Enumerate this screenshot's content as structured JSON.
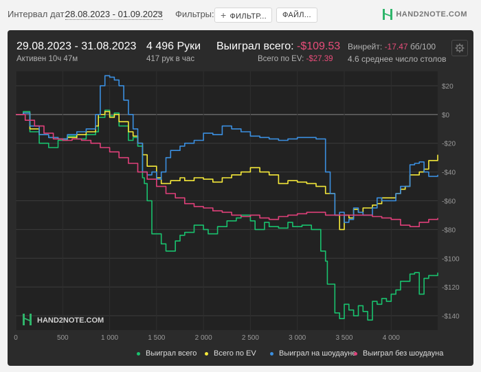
{
  "topbar": {
    "interval_label": "Интервал дат:",
    "interval_value": "28.08.2023 - 01.09.2023",
    "filters_label": "Фильтры:",
    "filter_button": "ФИЛЬТР...",
    "file_button": "ФАЙЛ...",
    "logo_text": "HAND2NOTE.COM"
  },
  "header": {
    "date_range": "29.08.2023 - 31.08.2023",
    "active": "Активен 10ч 47м",
    "hands": "4 496 Руки",
    "hands_per_hour": "417 рук в час",
    "won_label": "Выиграл всего:",
    "won_value": "-$109.53",
    "ev_label": "Всего по EV:",
    "ev_value": "-$27.39",
    "winrate_label": "Винрейт:",
    "winrate_value": "-17.47",
    "winrate_unit": "бб/100",
    "tables": "4.6 среднее число столов"
  },
  "chart_data": {
    "type": "line",
    "xlim": [
      0,
      4496
    ],
    "ylim": [
      -150,
      30
    ],
    "x_ticks": [
      0,
      500,
      1000,
      1500,
      2000,
      2500,
      3000,
      3500,
      4000
    ],
    "x_tick_labels": [
      "0",
      "500",
      "1 000",
      "1 500",
      "2 000",
      "2 500",
      "3 000",
      "3 500",
      "4 000"
    ],
    "y_ticks": [
      20,
      0,
      -20,
      -40,
      -60,
      -80,
      -100,
      -120,
      -140
    ],
    "y_tick_labels": [
      "$20",
      "$0",
      "-$20",
      "-$40",
      "-$60",
      "-$80",
      "-$100",
      "-$120",
      "-$140"
    ],
    "grid": true,
    "legend_position": "bottom-right",
    "watermark": "HAND2NOTE.COM",
    "series": [
      {
        "name": "Выиграл всего",
        "color": "#19c26e",
        "x": [
          0,
          80,
          150,
          250,
          350,
          450,
          550,
          650,
          750,
          850,
          880,
          950,
          1000,
          1050,
          1100,
          1200,
          1250,
          1300,
          1350,
          1370,
          1400,
          1450,
          1550,
          1600,
          1700,
          1750,
          1800,
          1900,
          2000,
          2050,
          2150,
          2250,
          2350,
          2400,
          2500,
          2550,
          2650,
          2700,
          2800,
          2900,
          2950,
          3050,
          3150,
          3250,
          3300,
          3320,
          3400,
          3450,
          3500,
          3550,
          3600,
          3650,
          3700,
          3750,
          3800,
          3850,
          3900,
          3950,
          4000,
          4050,
          4100,
          4200,
          4250,
          4300,
          4350,
          4400,
          4496
        ],
        "y": [
          0,
          2,
          -12,
          -20,
          -23,
          -18,
          -15,
          -17,
          -14,
          -12,
          -2,
          3,
          -1,
          1,
          -8,
          -18,
          -16,
          -22,
          -44,
          -48,
          -60,
          -83,
          -90,
          -95,
          -88,
          -84,
          -82,
          -77,
          -80,
          -83,
          -78,
          -74,
          -72,
          -70,
          -74,
          -80,
          -75,
          -78,
          -79,
          -75,
          -78,
          -77,
          -80,
          -95,
          -102,
          -118,
          -138,
          -142,
          -132,
          -136,
          -140,
          -133,
          -137,
          -143,
          -130,
          -132,
          -128,
          -130,
          -125,
          -122,
          -116,
          -111,
          -110,
          -125,
          -114,
          -112,
          -110
        ]
      },
      {
        "name": "Всего по EV",
        "color": "#f5e93a",
        "x": [
          0,
          80,
          150,
          250,
          350,
          450,
          550,
          650,
          750,
          850,
          880,
          950,
          1000,
          1050,
          1100,
          1200,
          1250,
          1300,
          1350,
          1400,
          1500,
          1550,
          1650,
          1750,
          1800,
          1900,
          2000,
          2100,
          2200,
          2300,
          2400,
          2500,
          2600,
          2700,
          2800,
          2900,
          3000,
          3100,
          3200,
          3300,
          3400,
          3450,
          3500,
          3550,
          3600,
          3650,
          3700,
          3800,
          3850,
          3900,
          4000,
          4050,
          4100,
          4150,
          4200,
          4300,
          4350,
          4400,
          4496
        ],
        "y": [
          0,
          1,
          -10,
          -14,
          -16,
          -17,
          -16,
          -14,
          -12,
          -8,
          0,
          2,
          -2,
          0,
          -5,
          -12,
          -15,
          -20,
          -28,
          -36,
          -44,
          -48,
          -46,
          -44,
          -46,
          -44,
          -45,
          -47,
          -44,
          -42,
          -40,
          -37,
          -40,
          -42,
          -48,
          -46,
          -47,
          -48,
          -50,
          -55,
          -70,
          -80,
          -70,
          -72,
          -66,
          -68,
          -65,
          -63,
          -62,
          -58,
          -58,
          -55,
          -52,
          -50,
          -42,
          -40,
          -38,
          -32,
          -28
        ]
      },
      {
        "name": "Выиграл на шоудауне",
        "color": "#3b8fe0",
        "x": [
          0,
          80,
          150,
          250,
          350,
          450,
          550,
          650,
          750,
          850,
          900,
          950,
          1000,
          1050,
          1100,
          1150,
          1200,
          1250,
          1300,
          1350,
          1400,
          1450,
          1500,
          1550,
          1600,
          1650,
          1750,
          1800,
          1900,
          2000,
          2100,
          2200,
          2300,
          2400,
          2500,
          2600,
          2700,
          2800,
          2900,
          3000,
          3100,
          3200,
          3300,
          3350,
          3400,
          3450,
          3500,
          3550,
          3600,
          3650,
          3700,
          3800,
          3850,
          3900,
          4000,
          4050,
          4100,
          4150,
          4200,
          4250,
          4300,
          4350,
          4400,
          4496
        ],
        "y": [
          0,
          1,
          -8,
          -14,
          -16,
          -17,
          -14,
          -12,
          -10,
          0,
          20,
          27,
          26,
          24,
          20,
          10,
          0,
          -10,
          -20,
          -40,
          -42,
          -40,
          -45,
          -40,
          -30,
          -25,
          -22,
          -20,
          -18,
          -13,
          -14,
          -8,
          -10,
          -12,
          -15,
          -16,
          -17,
          -18,
          -17,
          -16,
          -16,
          -17,
          -40,
          -55,
          -70,
          -68,
          -75,
          -73,
          -65,
          -68,
          -70,
          -65,
          -58,
          -60,
          -60,
          -55,
          -50,
          -50,
          -35,
          -34,
          -33,
          -40,
          -43,
          -42
        ]
      },
      {
        "name": "Выиграл без шоудауна",
        "color": "#e0407a",
        "x": [
          0,
          100,
          200,
          300,
          400,
          500,
          600,
          700,
          800,
          900,
          1000,
          1100,
          1200,
          1300,
          1400,
          1500,
          1600,
          1700,
          1800,
          1900,
          2000,
          2100,
          2200,
          2300,
          2400,
          2500,
          2600,
          2700,
          2800,
          2900,
          3000,
          3100,
          3200,
          3300,
          3400,
          3500,
          3600,
          3700,
          3800,
          3900,
          4000,
          4100,
          4200,
          4300,
          4400,
          4496
        ],
        "y": [
          0,
          -4,
          -8,
          -13,
          -17,
          -18,
          -17,
          -18,
          -20,
          -23,
          -26,
          -30,
          -34,
          -40,
          -45,
          -50,
          -55,
          -58,
          -62,
          -64,
          -65,
          -67,
          -68,
          -70,
          -71,
          -70,
          -72,
          -73,
          -71,
          -70,
          -69,
          -68,
          -68,
          -70,
          -70,
          -70,
          -70,
          -70,
          -71,
          -72,
          -73,
          -77,
          -78,
          -75,
          -73,
          -72
        ]
      }
    ]
  }
}
